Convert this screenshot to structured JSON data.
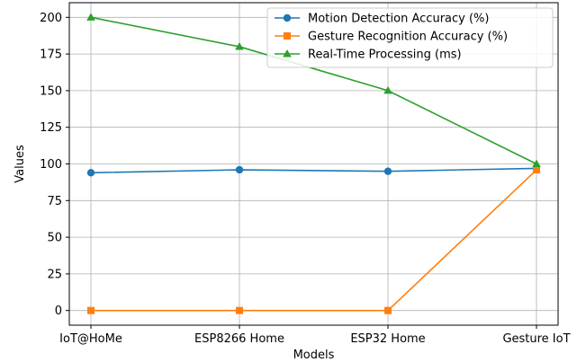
{
  "chart_data": {
    "type": "line",
    "categories": [
      "IoT@HoMe",
      "ESP8266 Home",
      "ESP32 Home",
      "Gesture IoT"
    ],
    "xlabel": "Models",
    "ylabel": "Values",
    "ylim": [
      -10,
      210
    ],
    "yticks": [
      0,
      25,
      50,
      75,
      100,
      125,
      150,
      175,
      200
    ],
    "grid": true,
    "legend_position": "top-right",
    "series": [
      {
        "name": "Motion Detection Accuracy (%)",
        "values": [
          94,
          96,
          95,
          97
        ],
        "color": "#1f77b4",
        "marker": "circle"
      },
      {
        "name": "Gesture Recognition Accuracy (%)",
        "values": [
          0,
          0,
          0,
          96
        ],
        "color": "#ff7f0e",
        "marker": "square"
      },
      {
        "name": "Real-Time Processing (ms)",
        "values": [
          200,
          180,
          150,
          100
        ],
        "color": "#2ca02c",
        "marker": "triangle"
      }
    ]
  }
}
